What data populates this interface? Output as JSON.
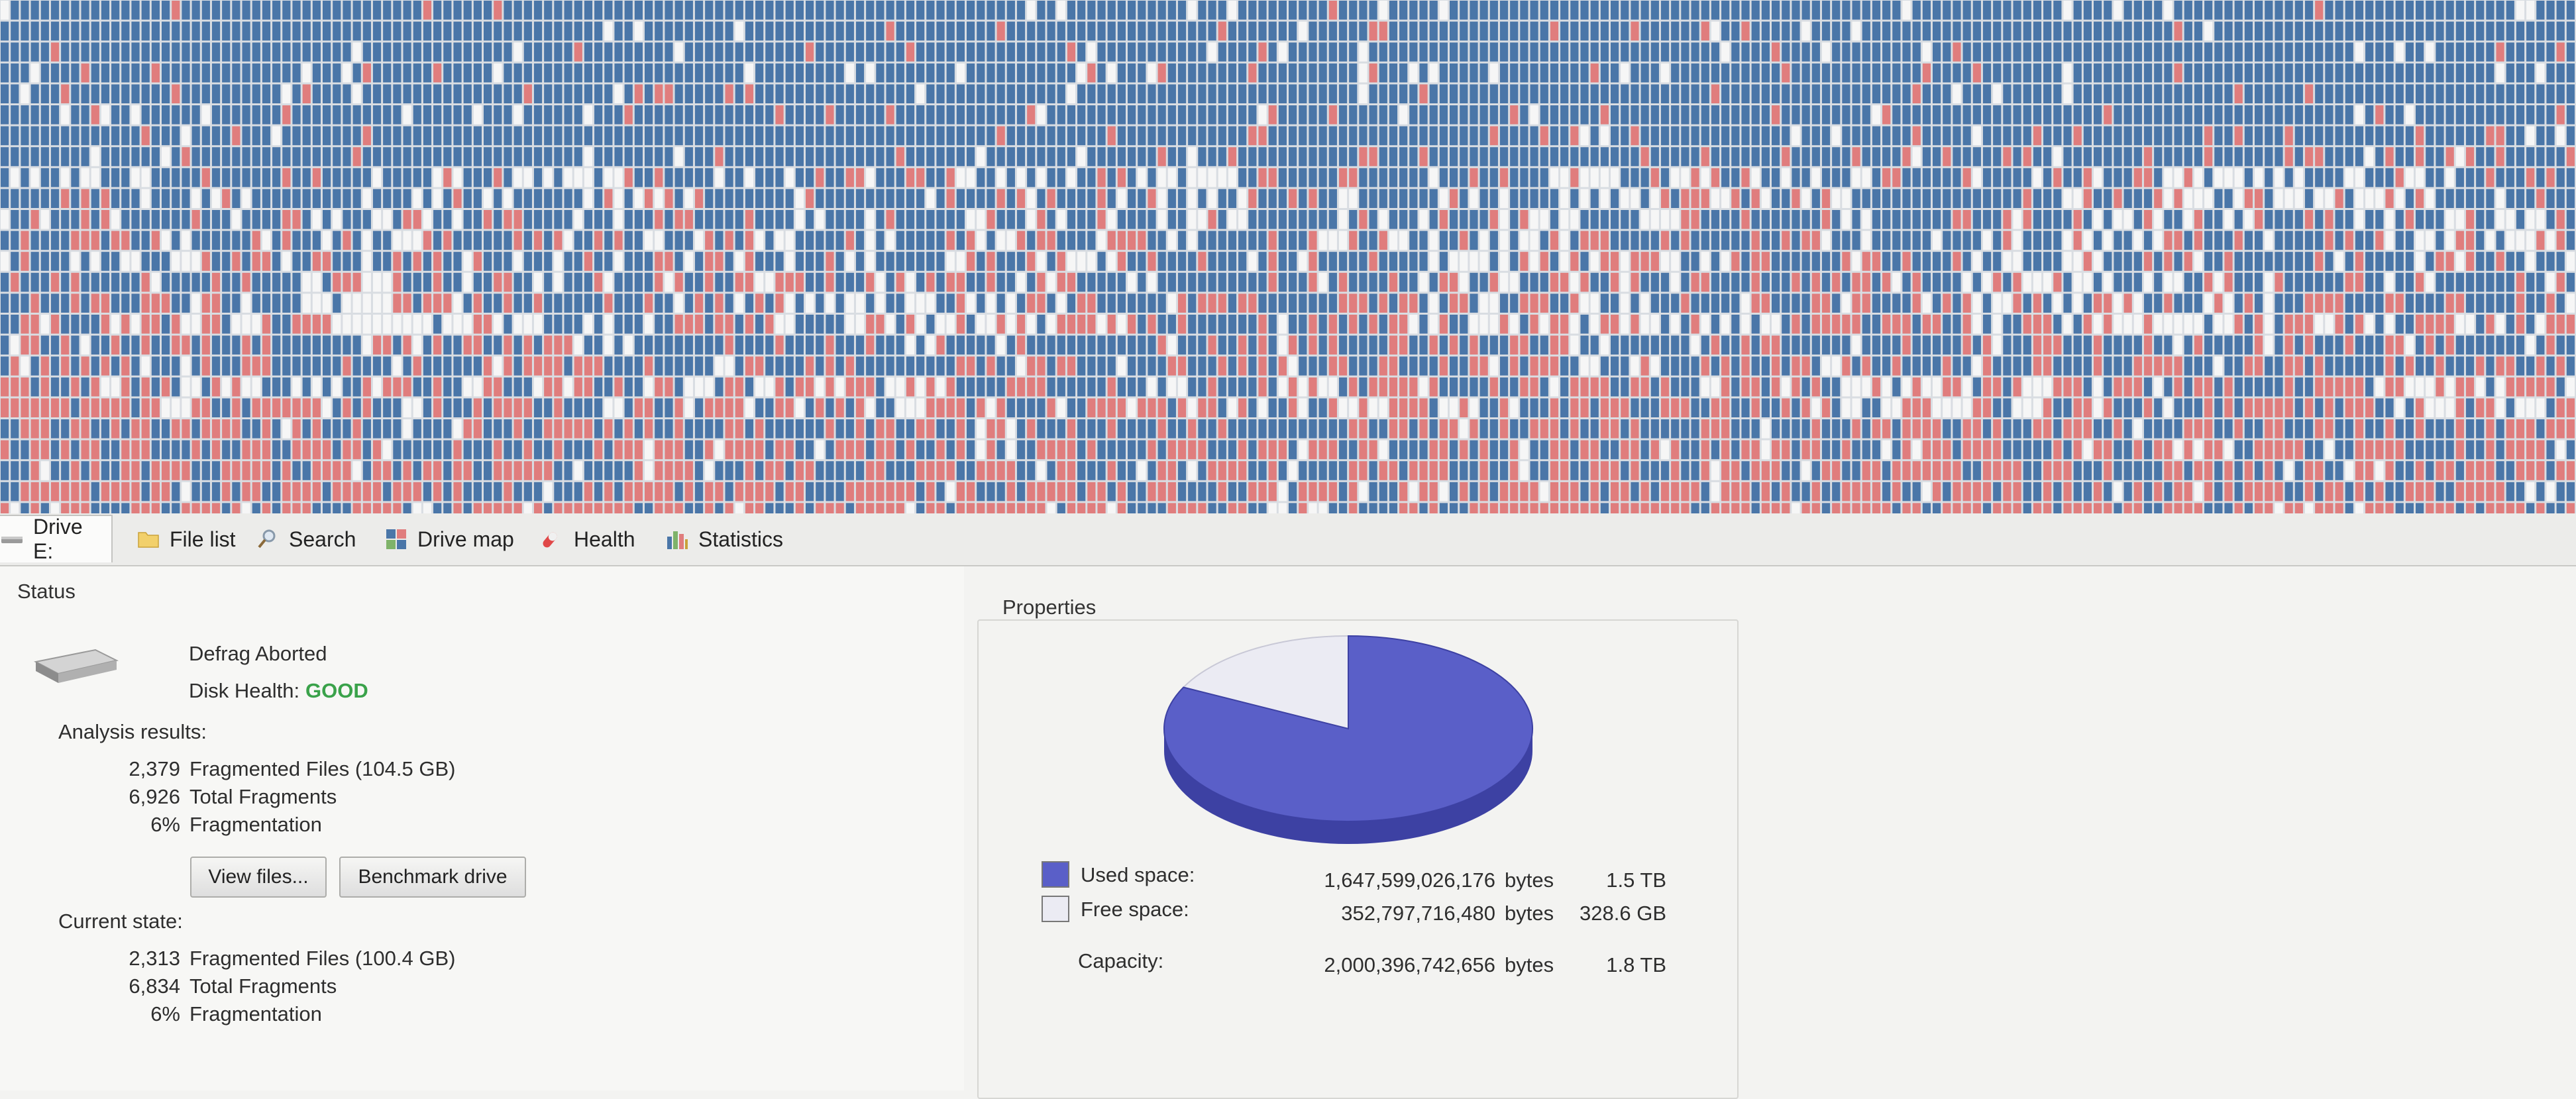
{
  "tabs": [
    {
      "label": "Drive E:",
      "icon": "drive-icon"
    },
    {
      "label": "File list",
      "icon": "folder-icon"
    },
    {
      "label": "Search",
      "icon": "search-icon"
    },
    {
      "label": "Drive map",
      "icon": "drive-map-icon"
    },
    {
      "label": "Health",
      "icon": "health-icon"
    },
    {
      "label": "Statistics",
      "icon": "statistics-icon"
    }
  ],
  "status": {
    "title": "Status",
    "state": "Defrag Aborted",
    "health_label": "Disk Health:",
    "health_value": "GOOD",
    "analysis_title": "Analysis results:",
    "analysis": [
      {
        "value": "2,379",
        "label": "Fragmented Files (104.5 GB)"
      },
      {
        "value": "6,926",
        "label": "Total Fragments"
      },
      {
        "value": "6%",
        "label": "Fragmentation"
      }
    ],
    "view_files": "View files...",
    "benchmark": "Benchmark drive",
    "current_title": "Current state:",
    "current": [
      {
        "value": "2,313",
        "label": "Fragmented Files (100.4 GB)"
      },
      {
        "value": "6,834",
        "label": "Total Fragments"
      },
      {
        "value": "6%",
        "label": "Fragmentation"
      }
    ]
  },
  "properties": {
    "title": "Properties",
    "used_label": "Used space:",
    "used_bytes": "1,647,599,026,176",
    "used_unit": "bytes",
    "used_size": "1.5 TB",
    "free_label": "Free space:",
    "free_bytes": "352,797,716,480",
    "free_unit": "bytes",
    "free_size": "328.6 GB",
    "capacity_label": "Capacity:",
    "capacity_bytes": "2,000,396,742,656",
    "capacity_unit": "bytes",
    "capacity_size": "1.8 TB",
    "used_fraction": 0.8236,
    "used_color": "#5a5fc8",
    "free_color": "#ebebf3"
  },
  "colors": {
    "used_block": "#4a76a8",
    "fragmented_block": "#e07d7d",
    "free_block": "#f6f6f6",
    "grid_line": "#d9dde2",
    "good": "#3aa24a"
  }
}
